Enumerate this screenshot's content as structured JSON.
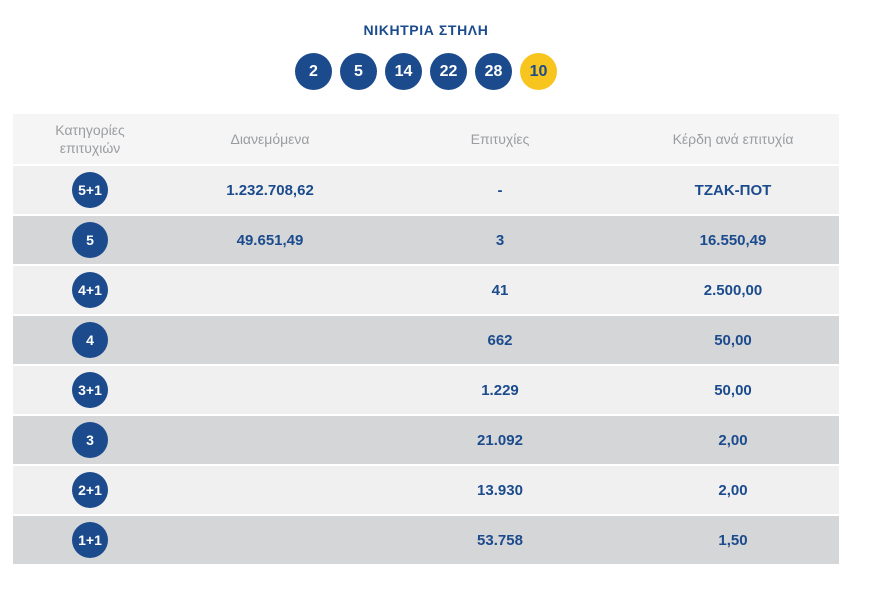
{
  "colors": {
    "navy": "#1b4b8c",
    "yellow": "#f7c51e",
    "header_bg": "#f5f5f6",
    "row_light": "#f0f0f1",
    "row_dark": "#d5d6d8",
    "header_text": "#9a9da0"
  },
  "winning": {
    "title": "ΝΙΚΗΤΡΙΑ ΣΤΗΛΗ",
    "numbers": [
      "2",
      "5",
      "14",
      "22",
      "28"
    ],
    "joker": "10"
  },
  "table": {
    "headers": [
      "Κατηγορίες επιτυχιών",
      "Διανεμόμενα",
      "Επιτυχίες",
      "Κέρδη ανά επιτυχία"
    ],
    "rows": [
      {
        "category": "5+1",
        "distributed": "1.232.708,62",
        "winners": "-",
        "prize": "ΤΖΑΚ-ΠΟΤ"
      },
      {
        "category": "5",
        "distributed": "49.651,49",
        "winners": "3",
        "prize": "16.550,49"
      },
      {
        "category": "4+1",
        "distributed": "",
        "winners": "41",
        "prize": "2.500,00"
      },
      {
        "category": "4",
        "distributed": "",
        "winners": "662",
        "prize": "50,00"
      },
      {
        "category": "3+1",
        "distributed": "",
        "winners": "1.229",
        "prize": "50,00"
      },
      {
        "category": "3",
        "distributed": "",
        "winners": "21.092",
        "prize": "2,00"
      },
      {
        "category": "2+1",
        "distributed": "",
        "winners": "13.930",
        "prize": "2,00"
      },
      {
        "category": "1+1",
        "distributed": "",
        "winners": "53.758",
        "prize": "1,50"
      }
    ]
  }
}
